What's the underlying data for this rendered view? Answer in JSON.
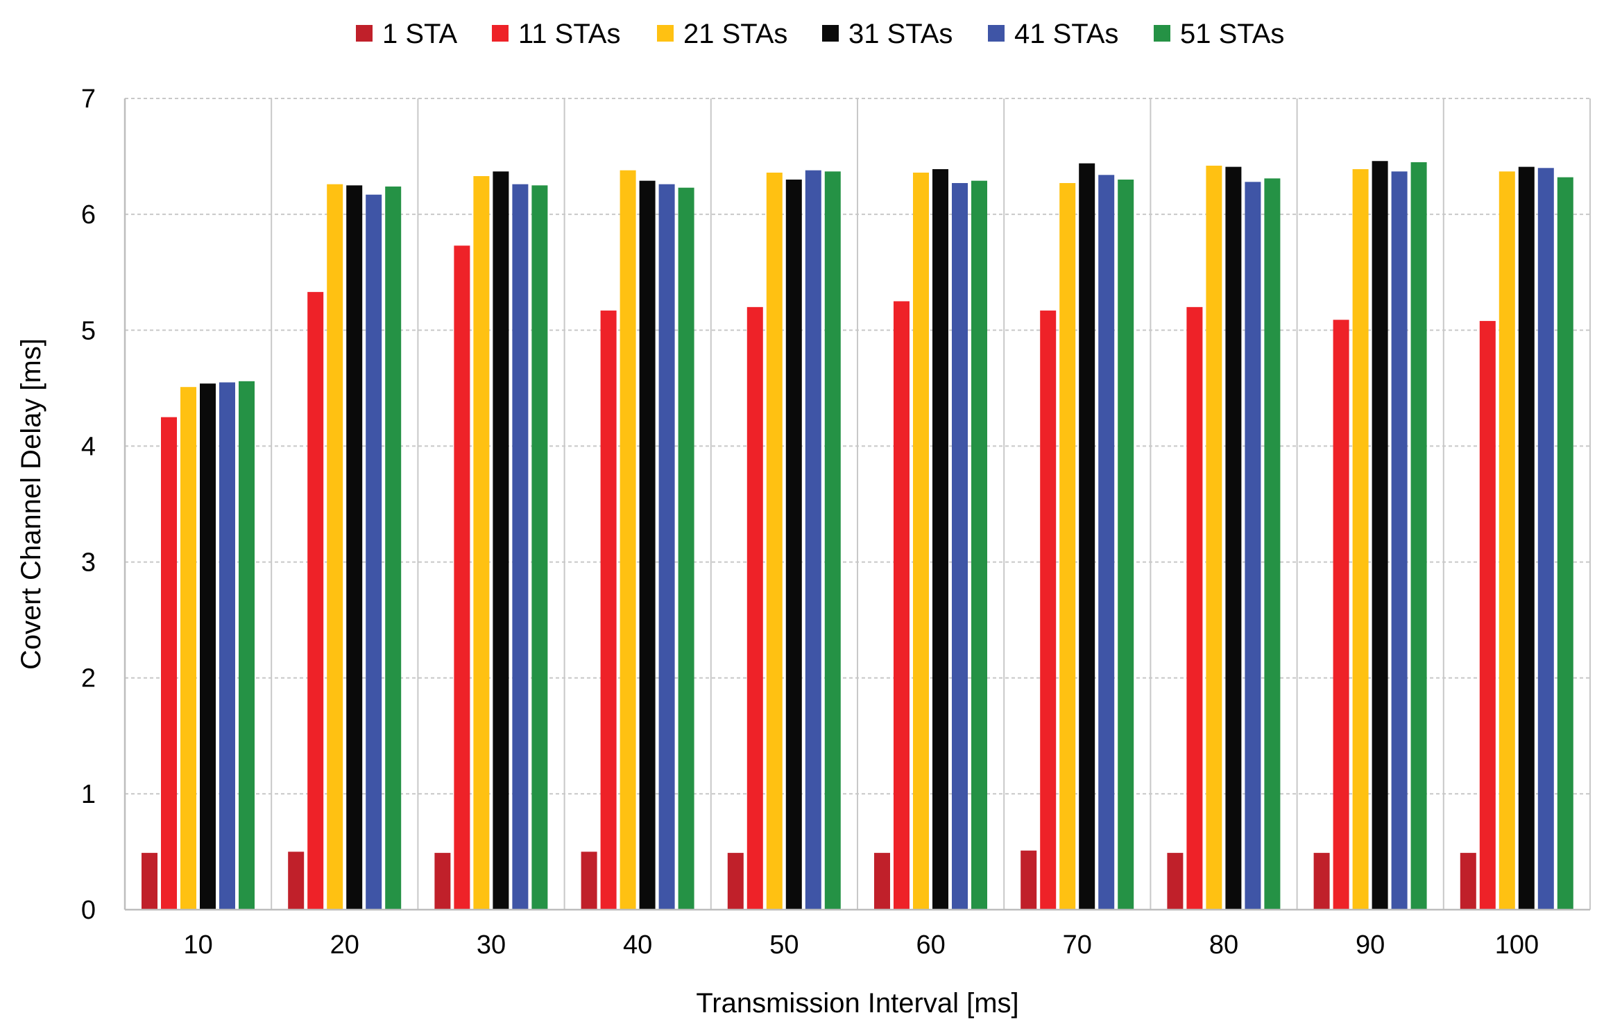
{
  "chart_data": {
    "type": "bar",
    "title": "",
    "xlabel": "Transmission Interval [ms]",
    "ylabel": "Covert Channel Delay [ms]",
    "ylim": [
      0,
      7
    ],
    "yticks": [
      "0",
      "1",
      "2",
      "3",
      "4",
      "5",
      "6",
      "7"
    ],
    "categories": [
      "10",
      "20",
      "30",
      "40",
      "50",
      "60",
      "70",
      "80",
      "90",
      "100"
    ],
    "grid": true,
    "legend_position": "top-center",
    "series": [
      {
        "name": "1 STA",
        "color": "#c0202a",
        "values": [
          0.49,
          0.5,
          0.49,
          0.5,
          0.49,
          0.49,
          0.51,
          0.49,
          0.49,
          0.49
        ]
      },
      {
        "name": "11 STAs",
        "color": "#ee2228",
        "values": [
          4.25,
          5.33,
          5.73,
          5.17,
          5.2,
          5.25,
          5.17,
          5.2,
          5.09,
          5.08
        ]
      },
      {
        "name": "21 STAs",
        "color": "#ffc112",
        "values": [
          4.51,
          6.26,
          6.33,
          6.38,
          6.36,
          6.36,
          6.27,
          6.42,
          6.39,
          6.37
        ]
      },
      {
        "name": "31 STAs",
        "color": "#0a0a0a",
        "values": [
          4.54,
          6.25,
          6.37,
          6.29,
          6.3,
          6.39,
          6.44,
          6.41,
          6.46,
          6.41
        ]
      },
      {
        "name": "41 STAs",
        "color": "#3f55a6",
        "values": [
          4.55,
          6.17,
          6.26,
          6.26,
          6.38,
          6.27,
          6.34,
          6.28,
          6.37,
          6.4
        ]
      },
      {
        "name": "51 STAs",
        "color": "#259245",
        "values": [
          4.56,
          6.24,
          6.25,
          6.23,
          6.37,
          6.29,
          6.3,
          6.31,
          6.45,
          6.32
        ]
      }
    ]
  }
}
